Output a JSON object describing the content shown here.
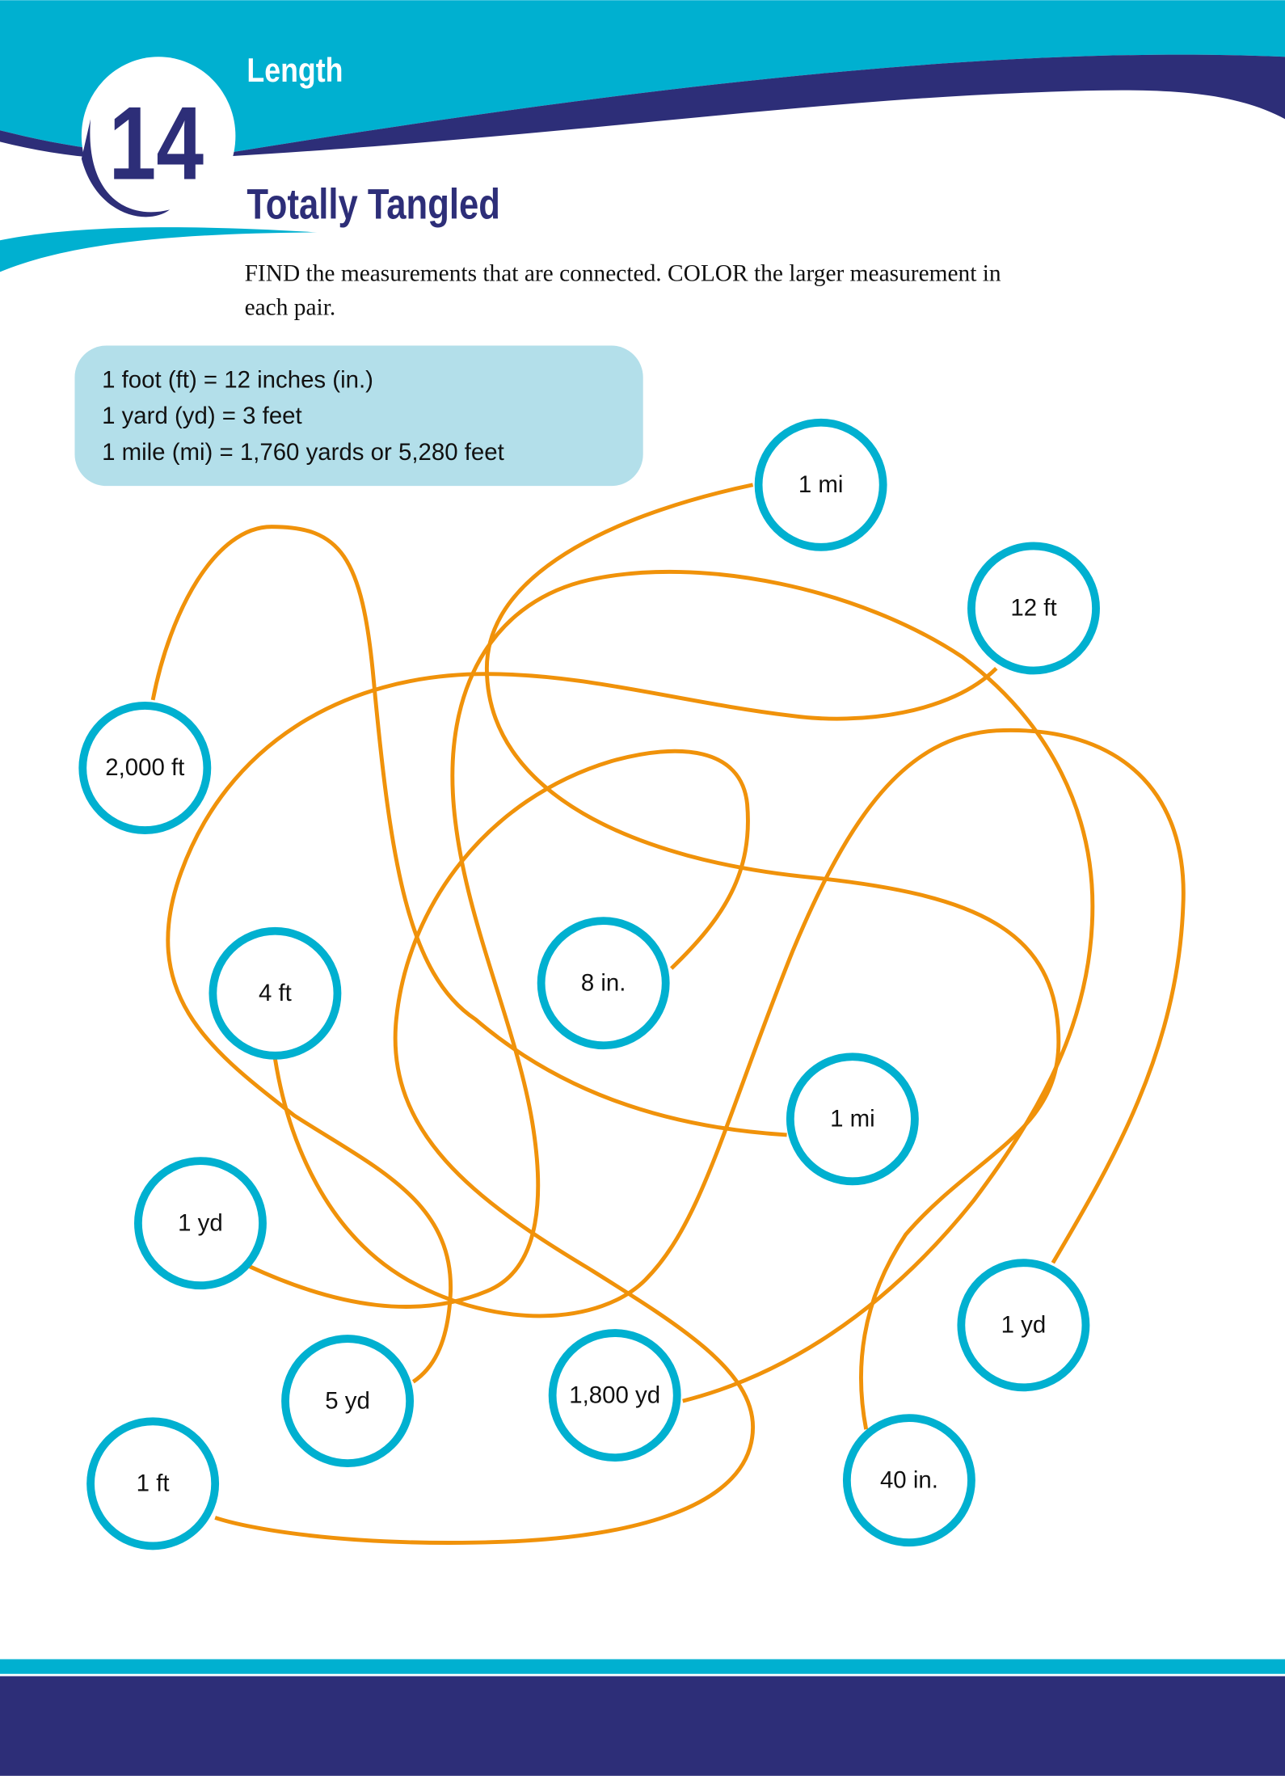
{
  "header": {
    "unit_number": "14",
    "unit_title": "Length",
    "activity_title": "Totally Tangled"
  },
  "instructions": {
    "line1": "FIND the measurements that are connected. COLOR the larger measurement in",
    "line2": "each pair."
  },
  "reference_box": {
    "lines": [
      "1 foot (ft) = 12 inches (in.)",
      "1 yard (yd) = 3 feet",
      "1 mile (mi) = 1,760 yards or 5,280 feet"
    ]
  },
  "measurements": [
    "1 mi",
    "12 ft",
    "2,000 ft",
    "4 ft",
    "8 in.",
    "1 mi",
    "1 yd",
    "1 yd",
    "5 yd",
    "1,800 yd",
    "40 in.",
    "1 ft"
  ],
  "colors": {
    "teal": "#00b0d0",
    "navy": "#2d2e78",
    "string": "#f0920a",
    "reference_bg": "#b3dfea"
  }
}
